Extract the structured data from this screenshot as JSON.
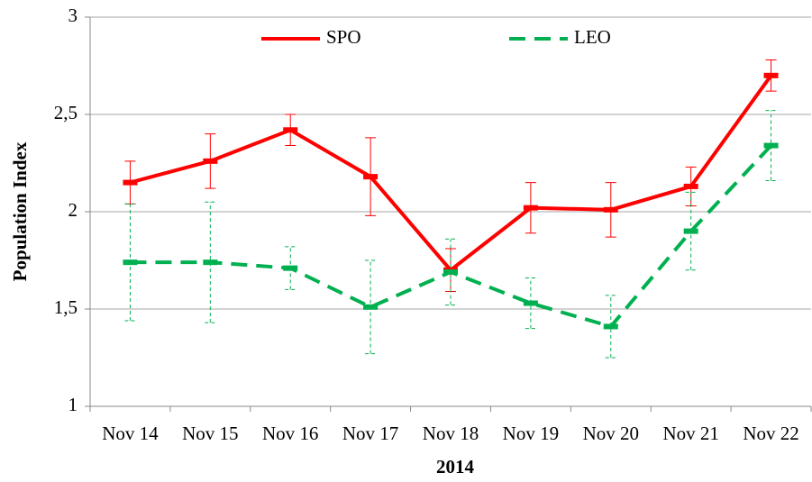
{
  "chart_data": {
    "type": "line",
    "x_label": "2014",
    "y_label": "Population Index",
    "categories": [
      "Nov 14",
      "Nov 15",
      "Nov 16",
      "Nov 17",
      "Nov 18",
      "Nov 19",
      "Nov 20",
      "Nov 21",
      "Nov 22"
    ],
    "series": [
      {
        "name": "SPO",
        "color": "#ff0000",
        "line_style": "solid",
        "values": [
          2.15,
          2.26,
          2.42,
          2.18,
          1.7,
          2.02,
          2.01,
          2.13,
          2.7
        ],
        "errors": [
          0.11,
          0.14,
          0.08,
          0.2,
          0.11,
          0.13,
          0.14,
          0.1,
          0.08
        ]
      },
      {
        "name": "LEO",
        "color": "#00b050",
        "line_style": "dashed",
        "values": [
          1.74,
          1.74,
          1.71,
          1.51,
          1.69,
          1.53,
          1.41,
          1.9,
          2.34
        ],
        "errors": [
          0.3,
          0.31,
          0.11,
          0.24,
          0.17,
          0.13,
          0.16,
          0.2,
          0.18
        ]
      }
    ],
    "ylim": [
      1,
      3
    ],
    "yticks": [
      1,
      {
        "value": 1.5,
        "label": "1,5"
      },
      2,
      {
        "value": 2.5,
        "label": "2,5"
      },
      3
    ],
    "grid": true,
    "legend": "top"
  }
}
